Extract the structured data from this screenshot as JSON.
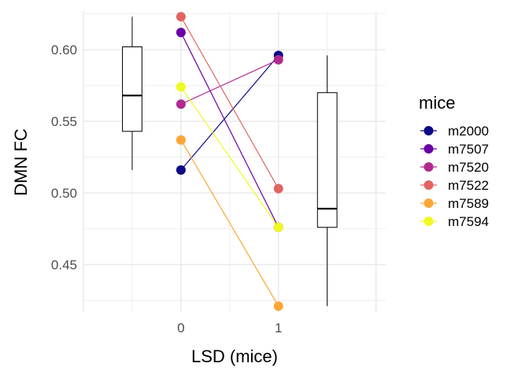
{
  "chart_data": {
    "type": "scatter",
    "xlabel": "LSD (mice)",
    "ylabel": "DMN FC",
    "x_ticks": [
      "0",
      "1"
    ],
    "y_ticks": [
      "0.45",
      "0.50",
      "0.55",
      "0.60"
    ],
    "y_tick_values": [
      0.45,
      0.5,
      0.55,
      0.6
    ],
    "xlim": [
      -1,
      2.1
    ],
    "ylim": [
      0.417,
      0.627
    ],
    "grid": true,
    "legend": {
      "title": "mice",
      "placement": "right"
    },
    "series": [
      {
        "name": "m2000",
        "color": "#0d0887",
        "x": [
          0,
          1
        ],
        "y": [
          0.516,
          0.596
        ]
      },
      {
        "name": "m7507",
        "color": "#6a00a8",
        "x": [
          0,
          1
        ],
        "y": [
          0.612,
          0.476
        ]
      },
      {
        "name": "m7520",
        "color": "#b12a90",
        "x": [
          0,
          1
        ],
        "y": [
          0.562,
          0.593
        ]
      },
      {
        "name": "m7522",
        "color": "#e16462",
        "x": [
          0,
          1
        ],
        "y": [
          0.623,
          0.503
        ]
      },
      {
        "name": "m7589",
        "color": "#fca636",
        "x": [
          0,
          1
        ],
        "y": [
          0.537,
          0.421
        ]
      },
      {
        "name": "m7594",
        "color": "#f0f921",
        "x": [
          0,
          1
        ],
        "y": [
          0.574,
          0.476
        ]
      }
    ],
    "boxplots": [
      {
        "x": -0.5,
        "group": "0",
        "min": 0.516,
        "q1": 0.543,
        "median": 0.568,
        "q3": 0.602,
        "max": 0.623
      },
      {
        "x": 1.5,
        "group": "1",
        "min": 0.421,
        "q1": 0.476,
        "median": 0.489,
        "q3": 0.57,
        "max": 0.596
      }
    ]
  }
}
